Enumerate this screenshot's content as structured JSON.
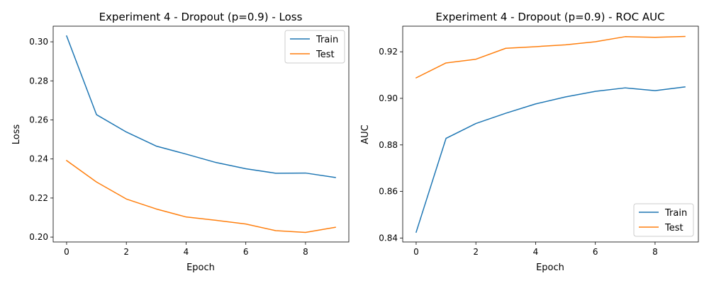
{
  "colors": {
    "train": "#1f77b4",
    "test": "#ff7f0e"
  },
  "chart_data": [
    {
      "type": "line",
      "title": "Experiment 4 - Dropout (p=0.9) - Loss",
      "xlabel": "Epoch",
      "ylabel": "Loss",
      "x": [
        0,
        1,
        2,
        3,
        4,
        5,
        6,
        7,
        8,
        9
      ],
      "xlim": [
        -0.45,
        9.45
      ],
      "ylim": [
        0.1975,
        0.308
      ],
      "xticks": [
        0,
        2,
        4,
        6,
        8
      ],
      "yticks": [
        0.2,
        0.22,
        0.24,
        0.26,
        0.28,
        0.3
      ],
      "ytick_labels": [
        "0.20",
        "0.22",
        "0.24",
        "0.26",
        "0.28",
        "0.30"
      ],
      "legend_position": "top-right",
      "grid": false,
      "series": [
        {
          "name": "Train",
          "color": "#1f77b4",
          "values": [
            0.303,
            0.2627,
            0.2538,
            0.2466,
            0.2425,
            0.2382,
            0.235,
            0.2327,
            0.2328,
            0.2305
          ]
        },
        {
          "name": "Test",
          "color": "#ff7f0e",
          "values": [
            0.2392,
            0.2282,
            0.2195,
            0.2144,
            0.2103,
            0.2086,
            0.2067,
            0.2033,
            0.2024,
            0.205
          ]
        }
      ]
    },
    {
      "type": "line",
      "title": "Experiment 4 - Dropout (p=0.9) - ROC AUC",
      "xlabel": "Epoch",
      "ylabel": "AUC",
      "x": [
        0,
        1,
        2,
        3,
        4,
        5,
        6,
        7,
        8,
        9
      ],
      "xlim": [
        -0.45,
        9.45
      ],
      "ylim": [
        0.8383,
        0.931
      ],
      "xticks": [
        0,
        2,
        4,
        6,
        8
      ],
      "yticks": [
        0.84,
        0.86,
        0.88,
        0.9,
        0.92
      ],
      "ytick_labels": [
        "0.84",
        "0.86",
        "0.88",
        "0.90",
        "0.92"
      ],
      "legend_position": "bottom-right",
      "grid": false,
      "series": [
        {
          "name": "Train",
          "color": "#1f77b4",
          "values": [
            0.8425,
            0.8828,
            0.8892,
            0.8936,
            0.8976,
            0.9006,
            0.903,
            0.9045,
            0.9033,
            0.9049
          ]
        },
        {
          "name": "Test",
          "color": "#ff7f0e",
          "values": [
            0.9088,
            0.9152,
            0.9168,
            0.9215,
            0.9222,
            0.923,
            0.9243,
            0.9265,
            0.9262,
            0.9266
          ]
        }
      ]
    }
  ]
}
